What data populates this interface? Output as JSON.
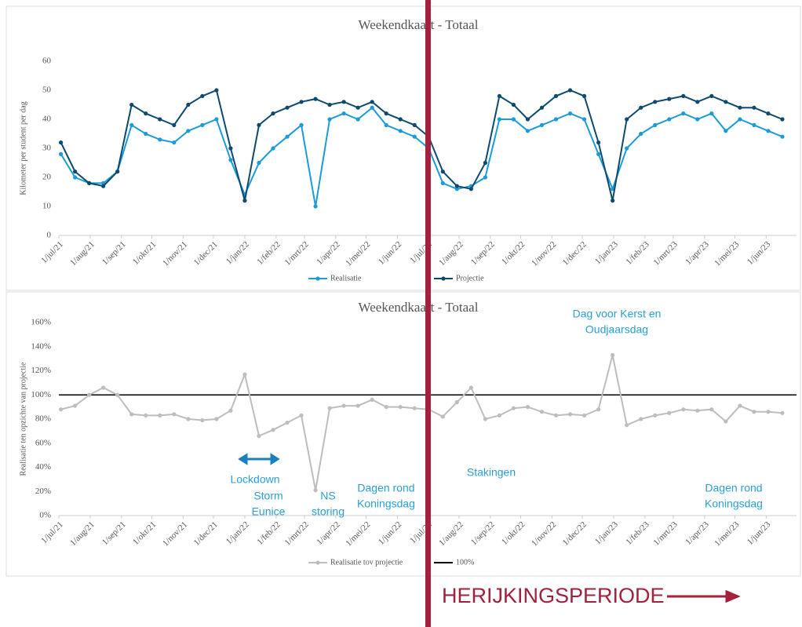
{
  "chart_data": [
    {
      "type": "line",
      "title": "Weekendkaart - Totaal",
      "y_label": "Kilometer per student per dag",
      "x": [
        "2021-07-03",
        "2021-07-17",
        "2021-07-31",
        "2021-08-14",
        "2021-08-28",
        "2021-09-11",
        "2021-09-25",
        "2021-10-09",
        "2021-10-23",
        "2021-11-06",
        "2021-11-20",
        "2021-12-04",
        "2021-12-18",
        "2022-01-01",
        "2022-01-15",
        "2022-01-29",
        "2022-02-12",
        "2022-02-26",
        "2022-03-12",
        "2022-03-26",
        "2022-04-09",
        "2022-04-23",
        "2022-05-07",
        "2022-05-21",
        "2022-06-04",
        "2022-06-18",
        "2022-07-02",
        "2022-07-16",
        "2022-07-30",
        "2022-08-13",
        "2022-08-27",
        "2022-09-10",
        "2022-09-24",
        "2022-10-08",
        "2022-10-22",
        "2022-11-05",
        "2022-11-19",
        "2022-12-03",
        "2022-12-17",
        "2022-12-31",
        "2023-01-14",
        "2023-01-28",
        "2023-02-11",
        "2023-02-25",
        "2023-03-11",
        "2023-03-25",
        "2023-04-08",
        "2023-04-22",
        "2023-05-06",
        "2023-05-20",
        "2023-06-03",
        "2023-06-17"
      ],
      "series": [
        {
          "name": "Realisatie",
          "color": "#1b9bd7",
          "values": [
            28,
            20,
            18,
            18,
            22,
            38,
            35,
            33,
            32,
            36,
            38,
            40,
            26,
            14,
            25,
            30,
            34,
            38,
            10,
            40,
            42,
            40,
            44,
            38,
            36,
            34,
            30,
            18,
            16,
            17,
            20,
            40,
            40,
            36,
            38,
            40,
            42,
            40,
            28,
            16,
            30,
            35,
            38,
            40,
            42,
            40,
            42,
            36,
            40,
            38,
            36,
            34
          ]
        },
        {
          "name": "Projectie",
          "color": "#0d4a6e",
          "values": [
            32,
            22,
            18,
            17,
            22,
            45,
            42,
            40,
            38,
            45,
            48,
            50,
            30,
            12,
            38,
            42,
            44,
            46,
            47,
            45,
            46,
            44,
            46,
            42,
            40,
            38,
            34,
            22,
            17,
            16,
            25,
            48,
            45,
            40,
            44,
            48,
            50,
            48,
            32,
            12,
            40,
            44,
            46,
            47,
            48,
            46,
            48,
            46,
            44,
            44,
            42,
            40
          ]
        }
      ],
      "xlim": [
        "2021-07-01",
        "2023-07-01"
      ],
      "xticks": [
        {
          "value": "2021-07-01",
          "label": "1/jul/21"
        },
        {
          "value": "2021-08-01",
          "label": "1/aug/21"
        },
        {
          "value": "2021-09-01",
          "label": "1/sep/21"
        },
        {
          "value": "2021-10-01",
          "label": "1/okt/21"
        },
        {
          "value": "2021-11-01",
          "label": "1/nov/21"
        },
        {
          "value": "2021-12-01",
          "label": "1/dec/21"
        },
        {
          "value": "2022-01-01",
          "label": "1/jan/22"
        },
        {
          "value": "2022-02-01",
          "label": "1/feb/22"
        },
        {
          "value": "2022-03-01",
          "label": "1/mrt/22"
        },
        {
          "value": "2022-04-01",
          "label": "1/apr/22"
        },
        {
          "value": "2022-05-01",
          "label": "1/mei/22"
        },
        {
          "value": "2022-06-01",
          "label": "1/jun/22"
        },
        {
          "value": "2022-07-01",
          "label": "1/jul/22"
        },
        {
          "value": "2022-08-01",
          "label": "1/aug/22"
        },
        {
          "value": "2022-09-01",
          "label": "1/sep/22"
        },
        {
          "value": "2022-10-01",
          "label": "1/okt/22"
        },
        {
          "value": "2022-11-01",
          "label": "1/nov/22"
        },
        {
          "value": "2022-12-01",
          "label": "1/dec/22"
        },
        {
          "value": "2023-01-01",
          "label": "1/jan/23"
        },
        {
          "value": "2023-02-01",
          "label": "1/feb/23"
        },
        {
          "value": "2023-03-01",
          "label": "1/mrt/23"
        },
        {
          "value": "2023-04-01",
          "label": "1/apr/23"
        },
        {
          "value": "2023-05-01",
          "label": "1/mei/23"
        },
        {
          "value": "2023-06-01",
          "label": "1/jun/23"
        }
      ],
      "ylim": [
        0,
        60
      ],
      "yticks": [
        0,
        10,
        20,
        30,
        40,
        50,
        60
      ],
      "legend": "bottom"
    },
    {
      "type": "line",
      "title": "Weekendkaart - Totaal",
      "y_label": "Realisatie ten opzichte van projectie",
      "x": [
        "2021-07-03",
        "2021-07-17",
        "2021-07-31",
        "2021-08-14",
        "2021-08-28",
        "2021-09-11",
        "2021-09-25",
        "2021-10-09",
        "2021-10-23",
        "2021-11-06",
        "2021-11-20",
        "2021-12-04",
        "2021-12-18",
        "2022-01-01",
        "2022-01-15",
        "2022-01-29",
        "2022-02-12",
        "2022-02-26",
        "2022-03-12",
        "2022-03-26",
        "2022-04-09",
        "2022-04-23",
        "2022-05-07",
        "2022-05-21",
        "2022-06-04",
        "2022-06-18",
        "2022-07-02",
        "2022-07-16",
        "2022-07-30",
        "2022-08-13",
        "2022-08-27",
        "2022-09-10",
        "2022-09-24",
        "2022-10-08",
        "2022-10-22",
        "2022-11-05",
        "2022-11-19",
        "2022-12-03",
        "2022-12-17",
        "2022-12-31",
        "2023-01-14",
        "2023-01-28",
        "2023-02-11",
        "2023-02-25",
        "2023-03-11",
        "2023-03-25",
        "2023-04-08",
        "2023-04-22",
        "2023-05-06",
        "2023-05-20",
        "2023-06-03",
        "2023-06-17"
      ],
      "series": [
        {
          "name": "Realisatie tov projectie",
          "color": "#bdbdbd",
          "values": [
            88,
            91,
            100,
            106,
            100,
            84,
            83,
            83,
            84,
            80,
            79,
            80,
            87,
            117,
            66,
            71,
            77,
            83,
            21,
            89,
            91,
            91,
            96,
            90,
            90,
            89,
            88,
            82,
            94,
            106,
            80,
            83,
            89,
            90,
            86,
            83,
            84,
            83,
            88,
            133,
            75,
            80,
            83,
            85,
            88,
            87,
            88,
            78,
            91,
            86,
            86,
            85
          ]
        }
      ],
      "reference": {
        "name": "100%",
        "value": 100,
        "color": "#000000"
      },
      "xlim": [
        "2021-07-01",
        "2023-07-01"
      ],
      "xticks": [
        {
          "value": "2021-07-01",
          "label": "1/jul/21"
        },
        {
          "value": "2021-08-01",
          "label": "1/aug/21"
        },
        {
          "value": "2021-09-01",
          "label": "1/sep/21"
        },
        {
          "value": "2021-10-01",
          "label": "1/okt/21"
        },
        {
          "value": "2021-11-01",
          "label": "1/nov/21"
        },
        {
          "value": "2021-12-01",
          "label": "1/dec/21"
        },
        {
          "value": "2022-01-01",
          "label": "1/jan/22"
        },
        {
          "value": "2022-02-01",
          "label": "1/feb/22"
        },
        {
          "value": "2022-03-01",
          "label": "1/mrt/22"
        },
        {
          "value": "2022-04-01",
          "label": "1/apr/22"
        },
        {
          "value": "2022-05-01",
          "label": "1/mei/22"
        },
        {
          "value": "2022-06-01",
          "label": "1/jun/22"
        },
        {
          "value": "2022-07-01",
          "label": "1/jul/22"
        },
        {
          "value": "2022-08-01",
          "label": "1/aug/22"
        },
        {
          "value": "2022-09-01",
          "label": "1/sep/22"
        },
        {
          "value": "2022-10-01",
          "label": "1/okt/22"
        },
        {
          "value": "2022-11-01",
          "label": "1/nov/22"
        },
        {
          "value": "2022-12-01",
          "label": "1/dec/22"
        },
        {
          "value": "2023-01-01",
          "label": "1/jan/23"
        },
        {
          "value": "2023-02-01",
          "label": "1/feb/23"
        },
        {
          "value": "2023-03-01",
          "label": "1/mrt/23"
        },
        {
          "value": "2023-04-01",
          "label": "1/apr/23"
        },
        {
          "value": "2023-05-01",
          "label": "1/mei/23"
        },
        {
          "value": "2023-06-01",
          "label": "1/jun/23"
        }
      ],
      "ylim": [
        0,
        160
      ],
      "yticks": [
        {
          "value": 0,
          "label": "0%"
        },
        {
          "value": 20,
          "label": "20%"
        },
        {
          "value": 40,
          "label": "40%"
        },
        {
          "value": 60,
          "label": "60%"
        },
        {
          "value": 80,
          "label": "80%"
        },
        {
          "value": 100,
          "label": "100%"
        },
        {
          "value": 120,
          "label": "120%"
        },
        {
          "value": 140,
          "label": "140%"
        },
        {
          "value": 160,
          "label": "160%"
        }
      ],
      "legend": "bottom",
      "annotations": [
        [
          "Lockdown"
        ],
        [
          "Storm",
          "Eunice"
        ],
        [
          "NS",
          "storing"
        ],
        [
          "Dagen rond",
          "Koningsdag"
        ],
        [
          "Stakingen"
        ],
        [
          "Dag voor Kerst en",
          "Oudjaarsdag"
        ],
        [
          "Dagen rond",
          "Koningsdag"
        ]
      ]
    }
  ],
  "overlay": {
    "label": "HERIJKINGSPERIODE"
  }
}
